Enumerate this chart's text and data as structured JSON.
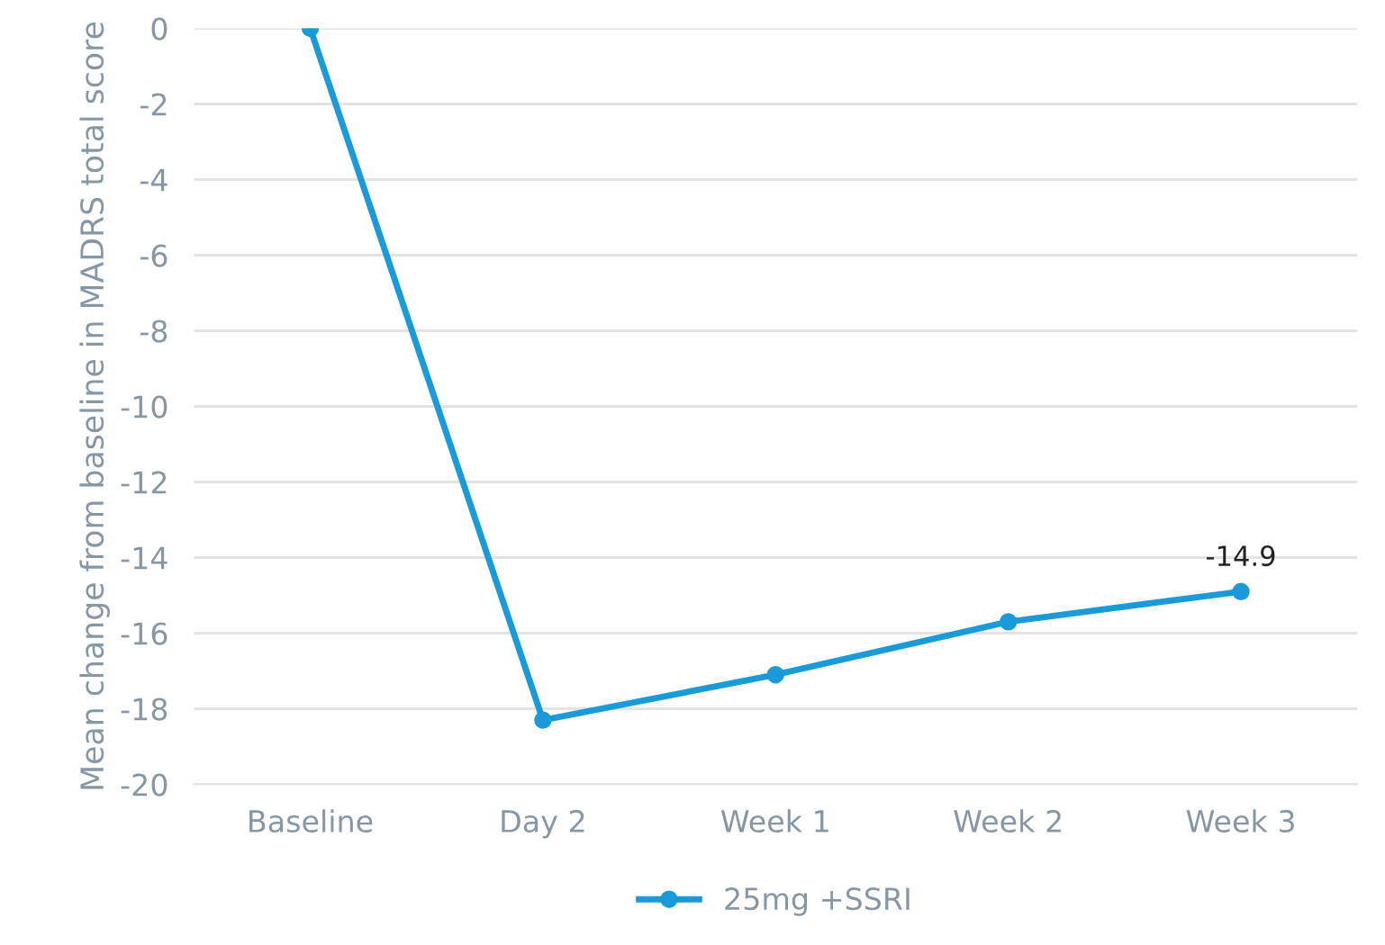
{
  "chart_data": {
    "type": "line",
    "ylabel": "Mean change from baseline in MADRS total score",
    "categories": [
      "Baseline",
      "Day 2",
      "Week 1",
      "Week 2",
      "Week 3"
    ],
    "series": [
      {
        "name": "25mg +SSRI",
        "color": "#1a9ad6",
        "values": [
          0,
          -18.3,
          -17.1,
          -15.7,
          -14.9
        ],
        "value_labels": [
          null,
          null,
          null,
          null,
          "-14.9"
        ]
      }
    ],
    "ylim": [
      -20,
      0
    ],
    "yticks": [
      0,
      -2,
      -4,
      -6,
      -8,
      -10,
      -12,
      -14,
      -16,
      -18,
      -20
    ],
    "grid": "y",
    "legend": "bottom",
    "marker": "circle",
    "line_style": "solid"
  }
}
